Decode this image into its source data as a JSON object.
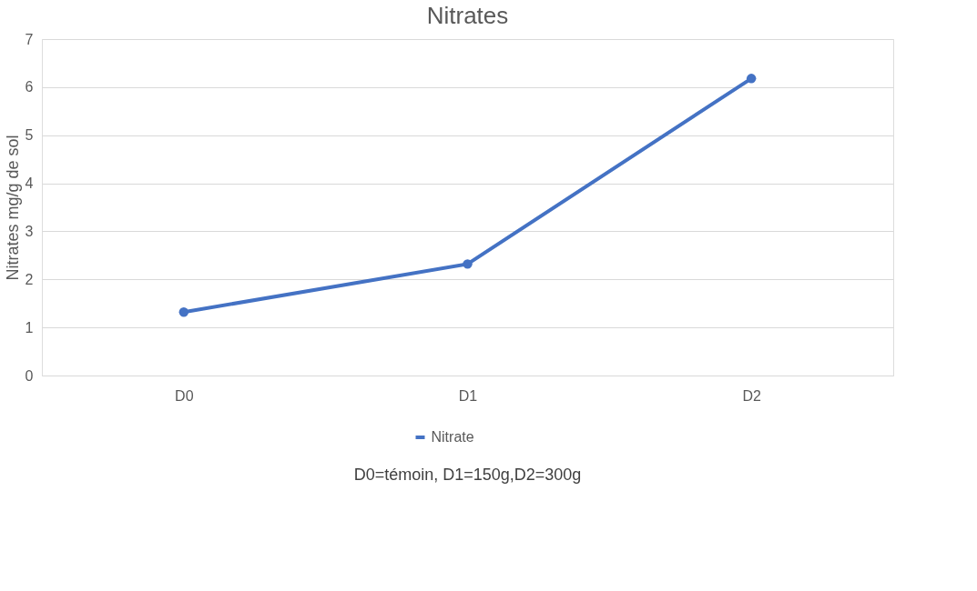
{
  "chart_data": {
    "type": "line",
    "title": "Nitrates",
    "ylabel": "Nitrates mg/g de sol",
    "categories": [
      "D0",
      "D1",
      "D2"
    ],
    "series": [
      {
        "name": "Nitrate",
        "color": "#4472c4",
        "values": [
          1.32,
          2.32,
          6.18
        ]
      }
    ],
    "ylim": [
      0,
      7
    ],
    "yticks": [
      0,
      1,
      2,
      3,
      4,
      5,
      6,
      7
    ],
    "grid": "y",
    "legend": "bottom",
    "marker": "circle",
    "line_style": "solid",
    "annotations": [
      "D0=témoin, D1=150g,D2=300g"
    ]
  }
}
